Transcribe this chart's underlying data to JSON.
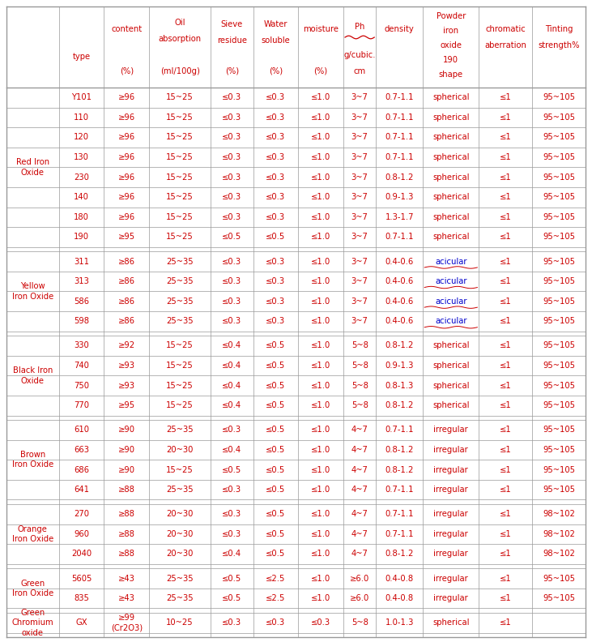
{
  "groups": [
    {
      "label": "Red Iron\nOxide",
      "rows": [
        [
          "Y101",
          "≥96",
          "15~25",
          "≤0.3",
          "≤0.3",
          "≤1.0",
          "3~7",
          "0.7-1.1",
          "spherical",
          "≤1",
          "95~105"
        ],
        [
          "110",
          "≥96",
          "15~25",
          "≤0.3",
          "≤0.3",
          "≤1.0",
          "3~7",
          "0.7-1.1",
          "spherical",
          "≤1",
          "95~105"
        ],
        [
          "120",
          "≥96",
          "15~25",
          "≤0.3",
          "≤0.3",
          "≤1.0",
          "3~7",
          "0.7-1.1",
          "spherical",
          "≤1",
          "95~105"
        ],
        [
          "130",
          "≥96",
          "15~25",
          "≤0.3",
          "≤0.3",
          "≤1.0",
          "3~7",
          "0.7-1.1",
          "spherical",
          "≤1",
          "95~105"
        ],
        [
          "230",
          "≥96",
          "15~25",
          "≤0.3",
          "≤0.3",
          "≤1.0",
          "3~7",
          "0.8-1.2",
          "spherical",
          "≤1",
          "95~105"
        ],
        [
          "140",
          "≥96",
          "15~25",
          "≤0.3",
          "≤0.3",
          "≤1.0",
          "3~7",
          "0.9-1.3",
          "spherical",
          "≤1",
          "95~105"
        ],
        [
          "180",
          "≥96",
          "15~25",
          "≤0.3",
          "≤0.3",
          "≤1.0",
          "3~7",
          "1.3-1.7",
          "spherical",
          "≤1",
          "95~105"
        ],
        [
          "190",
          "≥95",
          "15~25",
          "≤0.5",
          "≤0.5",
          "≤1.0",
          "3~7",
          "0.7-1.1",
          "spherical",
          "≤1",
          "95~105"
        ]
      ]
    },
    {
      "label": "Yellow\nIron Oxide",
      "rows": [
        [
          "311",
          "≥86",
          "25~35",
          "≤0.3",
          "≤0.3",
          "≤1.0",
          "3~7",
          "0.4-0.6",
          "acicular",
          "≤1",
          "95~105"
        ],
        [
          "313",
          "≥86",
          "25~35",
          "≤0.3",
          "≤0.3",
          "≤1.0",
          "3~7",
          "0.4-0.6",
          "acicular",
          "≤1",
          "95~105"
        ],
        [
          "586",
          "≥86",
          "25~35",
          "≤0.3",
          "≤0.3",
          "≤1.0",
          "3~7",
          "0.4-0.6",
          "acicular",
          "≤1",
          "95~105"
        ],
        [
          "598",
          "≥86",
          "25~35",
          "≤0.3",
          "≤0.3",
          "≤1.0",
          "3~7",
          "0.4-0.6",
          "acicular",
          "≤1",
          "95~105"
        ]
      ]
    },
    {
      "label": "Black Iron\nOxide",
      "rows": [
        [
          "330",
          "≥92",
          "15~25",
          "≤0.4",
          "≤0.5",
          "≤1.0",
          "5~8",
          "0.8-1.2",
          "spherical",
          "≤1",
          "95~105"
        ],
        [
          "740",
          "≥93",
          "15~25",
          "≤0.4",
          "≤0.5",
          "≤1.0",
          "5~8",
          "0.9-1.3",
          "spherical",
          "≤1",
          "95~105"
        ],
        [
          "750",
          "≥93",
          "15~25",
          "≤0.4",
          "≤0.5",
          "≤1.0",
          "5~8",
          "0.8-1.3",
          "spherical",
          "≤1",
          "95~105"
        ],
        [
          "770",
          "≥95",
          "15~25",
          "≤0.4",
          "≤0.5",
          "≤1.0",
          "5~8",
          "0.8-1.2",
          "spherical",
          "≤1",
          "95~105"
        ]
      ]
    },
    {
      "label": "Brown\nIron Oxide",
      "rows": [
        [
          "610",
          "≥90",
          "25~35",
          "≤0.3",
          "≤0.5",
          "≤1.0",
          "4~7",
          "0.7-1.1",
          "irregular",
          "≤1",
          "95~105"
        ],
        [
          "663",
          "≥90",
          "20~30",
          "≤0.4",
          "≤0.5",
          "≤1.0",
          "4~7",
          "0.8-1.2",
          "irregular",
          "≤1",
          "95~105"
        ],
        [
          "686",
          "≥90",
          "15~25",
          "≤0.5",
          "≤0.5",
          "≤1.0",
          "4~7",
          "0.8-1.2",
          "irregular",
          "≤1",
          "95~105"
        ],
        [
          "641",
          "≥88",
          "25~35",
          "≤0.3",
          "≤0.5",
          "≤1.0",
          "4~7",
          "0.7-1.1",
          "irregular",
          "≤1",
          "95~105"
        ]
      ]
    },
    {
      "label": "Orange\nIron Oxide",
      "rows": [
        [
          "270",
          "≥88",
          "20~30",
          "≤0.3",
          "≤0.5",
          "≤1.0",
          "4~7",
          "0.7-1.1",
          "irregular",
          "≤1",
          "98~102"
        ],
        [
          "960",
          "≥88",
          "20~30",
          "≤0.3",
          "≤0.5",
          "≤1.0",
          "4~7",
          "0.7-1.1",
          "irregular",
          "≤1",
          "98~102"
        ],
        [
          "2040",
          "≥88",
          "20~30",
          "≤0.4",
          "≤0.5",
          "≤1.0",
          "4~7",
          "0.8-1.2",
          "irregular",
          "≤1",
          "98~102"
        ]
      ]
    },
    {
      "label": "Green\nIron Oxide",
      "rows": [
        [
          "5605",
          "≥43",
          "25~35",
          "≤0.5",
          "≤2.5",
          "≤1.0",
          "≥6.0",
          "0.4-0.8",
          "irregular",
          "≤1",
          "95~105"
        ],
        [
          "835",
          "≥43",
          "25~35",
          "≤0.5",
          "≤2.5",
          "≤1.0",
          "≥6.0",
          "0.4-0.8",
          "irregular",
          "≤1",
          "95~105"
        ]
      ]
    },
    {
      "label": "Green\nChromium\noxide",
      "rows": [
        [
          "GX",
          "≥99\n(Cr2O3)",
          "10~25",
          "≤0.3",
          "≤0.3",
          "≤0.3",
          "5~8",
          "1.0-1.3",
          "spherical",
          "≤1",
          ""
        ]
      ]
    }
  ],
  "text_color": "#cc0000",
  "border_color": "#999999",
  "bg_color": "#ffffff",
  "font_size": 7.2,
  "acicular_color": "#0000cc",
  "wavy_color": "#cc0000"
}
